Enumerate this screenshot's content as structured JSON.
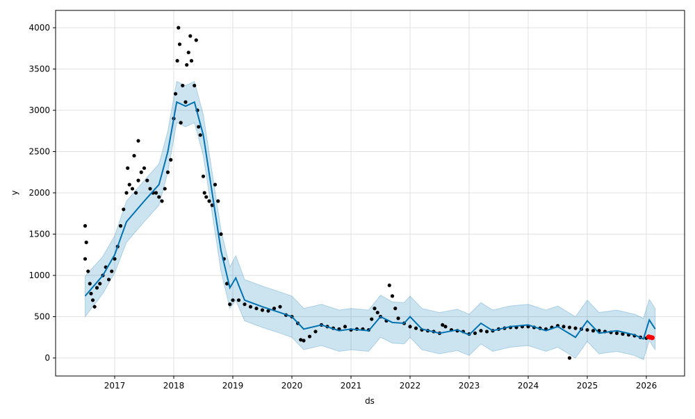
{
  "chart_data": {
    "type": "scatter",
    "title": "",
    "xlabel": "ds",
    "ylabel": "y",
    "xlim": [
      2016.0,
      2026.65
    ],
    "ylim": [
      -200,
      4200
    ],
    "grid": true,
    "x_ticks": [
      2017,
      2018,
      2019,
      2020,
      2021,
      2022,
      2023,
      2024,
      2025,
      2026
    ],
    "x_tick_labels": [
      "2017",
      "2018",
      "2019",
      "2020",
      "2021",
      "2022",
      "2023",
      "2024",
      "2025",
      "2026"
    ],
    "y_ticks": [
      0,
      500,
      1000,
      1500,
      2000,
      2500,
      3000,
      3500,
      4000
    ],
    "y_tick_labels": [
      "0",
      "500",
      "1000",
      "1500",
      "2000",
      "2500",
      "3000",
      "3500",
      "4000"
    ],
    "colors": {
      "forecast": "#0072B2",
      "band": "#0072B2",
      "observed": "#000000",
      "highlight": "#ff0000"
    },
    "forecast": {
      "x": [
        2016.5,
        2016.8,
        2017.0,
        2017.2,
        2017.5,
        2017.75,
        2017.9,
        2018.05,
        2018.2,
        2018.35,
        2018.5,
        2018.65,
        2018.8,
        2018.95,
        2019.05,
        2019.2,
        2019.5,
        2019.8,
        2020.0,
        2020.2,
        2020.5,
        2020.8,
        2021.0,
        2021.3,
        2021.5,
        2021.7,
        2021.9,
        2022.0,
        2022.2,
        2022.5,
        2022.8,
        2023.0,
        2023.2,
        2023.4,
        2023.7,
        2024.0,
        2024.3,
        2024.5,
        2024.8,
        2025.0,
        2025.2,
        2025.5,
        2025.8,
        2025.95,
        2026.05,
        2026.15
      ],
      "yhat": [
        750,
        1000,
        1250,
        1650,
        1900,
        2100,
        2500,
        3100,
        3050,
        3100,
        2700,
        2000,
        1300,
        850,
        970,
        700,
        620,
        550,
        500,
        350,
        400,
        330,
        350,
        330,
        500,
        430,
        420,
        500,
        350,
        300,
        340,
        280,
        420,
        330,
        380,
        400,
        330,
        380,
        250,
        450,
        300,
        330,
        280,
        230,
        460,
        350
      ],
      "lower": [
        500,
        780,
        1030,
        1400,
        1650,
        1850,
        2250,
        2850,
        2800,
        2850,
        2450,
        1750,
        1050,
        600,
        700,
        450,
        370,
        300,
        250,
        100,
        150,
        80,
        100,
        80,
        250,
        180,
        170,
        250,
        100,
        50,
        90,
        30,
        170,
        80,
        130,
        150,
        80,
        130,
        0,
        200,
        50,
        80,
        30,
        -20,
        210,
        100
      ],
      "upper": [
        990,
        1230,
        1480,
        1900,
        2150,
        2350,
        2750,
        3350,
        3300,
        3350,
        2950,
        2250,
        1550,
        1100,
        1240,
        950,
        870,
        800,
        750,
        600,
        650,
        580,
        600,
        580,
        760,
        680,
        670,
        750,
        600,
        550,
        590,
        530,
        670,
        580,
        630,
        650,
        580,
        630,
        500,
        700,
        550,
        580,
        530,
        480,
        710,
        600
      ]
    },
    "observed": [
      [
        2016.5,
        1600
      ],
      [
        2016.5,
        1200
      ],
      [
        2016.52,
        1400
      ],
      [
        2016.55,
        1050
      ],
      [
        2016.58,
        900
      ],
      [
        2016.6,
        780
      ],
      [
        2016.63,
        700
      ],
      [
        2016.66,
        620
      ],
      [
        2016.7,
        850
      ],
      [
        2016.75,
        900
      ],
      [
        2016.8,
        1000
      ],
      [
        2016.85,
        1100
      ],
      [
        2016.9,
        950
      ],
      [
        2016.95,
        1050
      ],
      [
        2017.0,
        1200
      ],
      [
        2017.05,
        1350
      ],
      [
        2017.1,
        1600
      ],
      [
        2017.15,
        1800
      ],
      [
        2017.2,
        2000
      ],
      [
        2017.22,
        2300
      ],
      [
        2017.25,
        2100
      ],
      [
        2017.3,
        2050
      ],
      [
        2017.33,
        2450
      ],
      [
        2017.36,
        2000
      ],
      [
        2017.4,
        2150
      ],
      [
        2017.45,
        2250
      ],
      [
        2017.4,
        2630
      ],
      [
        2017.5,
        2300
      ],
      [
        2017.55,
        2150
      ],
      [
        2017.6,
        2050
      ],
      [
        2017.65,
        2000
      ],
      [
        2017.7,
        2000
      ],
      [
        2017.75,
        1950
      ],
      [
        2017.8,
        1900
      ],
      [
        2017.85,
        2050
      ],
      [
        2017.9,
        2250
      ],
      [
        2017.95,
        2400
      ],
      [
        2018.0,
        2900
      ],
      [
        2018.03,
        3200
      ],
      [
        2018.06,
        3600
      ],
      [
        2018.08,
        4000
      ],
      [
        2018.1,
        3800
      ],
      [
        2018.12,
        2850
      ],
      [
        2018.15,
        3300
      ],
      [
        2018.2,
        3100
      ],
      [
        2018.22,
        3550
      ],
      [
        2018.25,
        3700
      ],
      [
        2018.28,
        3900
      ],
      [
        2018.3,
        3600
      ],
      [
        2018.35,
        3300
      ],
      [
        2018.38,
        3850
      ],
      [
        2018.4,
        3000
      ],
      [
        2018.42,
        2800
      ],
      [
        2018.45,
        2700
      ],
      [
        2018.5,
        2200
      ],
      [
        2018.52,
        2000
      ],
      [
        2018.55,
        1950
      ],
      [
        2018.6,
        1900
      ],
      [
        2018.65,
        1850
      ],
      [
        2018.7,
        2100
      ],
      [
        2018.75,
        1900
      ],
      [
        2018.8,
        1500
      ],
      [
        2018.85,
        1200
      ],
      [
        2018.9,
        900
      ],
      [
        2018.95,
        650
      ],
      [
        2019.0,
        700
      ],
      [
        2019.1,
        700
      ],
      [
        2019.2,
        650
      ],
      [
        2019.3,
        620
      ],
      [
        2019.4,
        600
      ],
      [
        2019.5,
        580
      ],
      [
        2019.6,
        570
      ],
      [
        2019.7,
        600
      ],
      [
        2019.8,
        620
      ],
      [
        2019.9,
        520
      ],
      [
        2020.0,
        500
      ],
      [
        2020.1,
        420
      ],
      [
        2020.15,
        220
      ],
      [
        2020.2,
        210
      ],
      [
        2020.3,
        260
      ],
      [
        2020.4,
        320
      ],
      [
        2020.5,
        400
      ],
      [
        2020.6,
        380
      ],
      [
        2020.7,
        360
      ],
      [
        2020.8,
        350
      ],
      [
        2020.9,
        380
      ],
      [
        2021.0,
        340
      ],
      [
        2021.1,
        350
      ],
      [
        2021.2,
        350
      ],
      [
        2021.3,
        340
      ],
      [
        2021.35,
        470
      ],
      [
        2021.4,
        600
      ],
      [
        2021.45,
        550
      ],
      [
        2021.5,
        500
      ],
      [
        2021.6,
        450
      ],
      [
        2021.65,
        880
      ],
      [
        2021.7,
        750
      ],
      [
        2021.75,
        600
      ],
      [
        2021.8,
        480
      ],
      [
        2021.9,
        420
      ],
      [
        2022.0,
        380
      ],
      [
        2022.1,
        360
      ],
      [
        2022.2,
        340
      ],
      [
        2022.3,
        330
      ],
      [
        2022.4,
        320
      ],
      [
        2022.5,
        300
      ],
      [
        2022.55,
        400
      ],
      [
        2022.6,
        380
      ],
      [
        2022.7,
        340
      ],
      [
        2022.8,
        330
      ],
      [
        2022.9,
        320
      ],
      [
        2023.0,
        290
      ],
      [
        2023.1,
        300
      ],
      [
        2023.2,
        330
      ],
      [
        2023.3,
        320
      ],
      [
        2023.4,
        330
      ],
      [
        2023.5,
        350
      ],
      [
        2023.6,
        360
      ],
      [
        2023.7,
        370
      ],
      [
        2023.8,
        370
      ],
      [
        2023.9,
        380
      ],
      [
        2024.0,
        380
      ],
      [
        2024.1,
        370
      ],
      [
        2024.2,
        360
      ],
      [
        2024.3,
        350
      ],
      [
        2024.4,
        370
      ],
      [
        2024.5,
        390
      ],
      [
        2024.6,
        380
      ],
      [
        2024.7,
        370
      ],
      [
        2024.7,
        0
      ],
      [
        2024.8,
        360
      ],
      [
        2024.9,
        350
      ],
      [
        2025.0,
        340
      ],
      [
        2025.1,
        330
      ],
      [
        2025.2,
        330
      ],
      [
        2025.3,
        320
      ],
      [
        2025.4,
        310
      ],
      [
        2025.5,
        300
      ],
      [
        2025.6,
        290
      ],
      [
        2025.7,
        280
      ],
      [
        2025.8,
        270
      ],
      [
        2025.9,
        250
      ],
      [
        2026.0,
        240
      ]
    ],
    "highlighted": [
      [
        2026.04,
        255
      ],
      [
        2026.07,
        250
      ],
      [
        2026.1,
        245
      ]
    ]
  }
}
